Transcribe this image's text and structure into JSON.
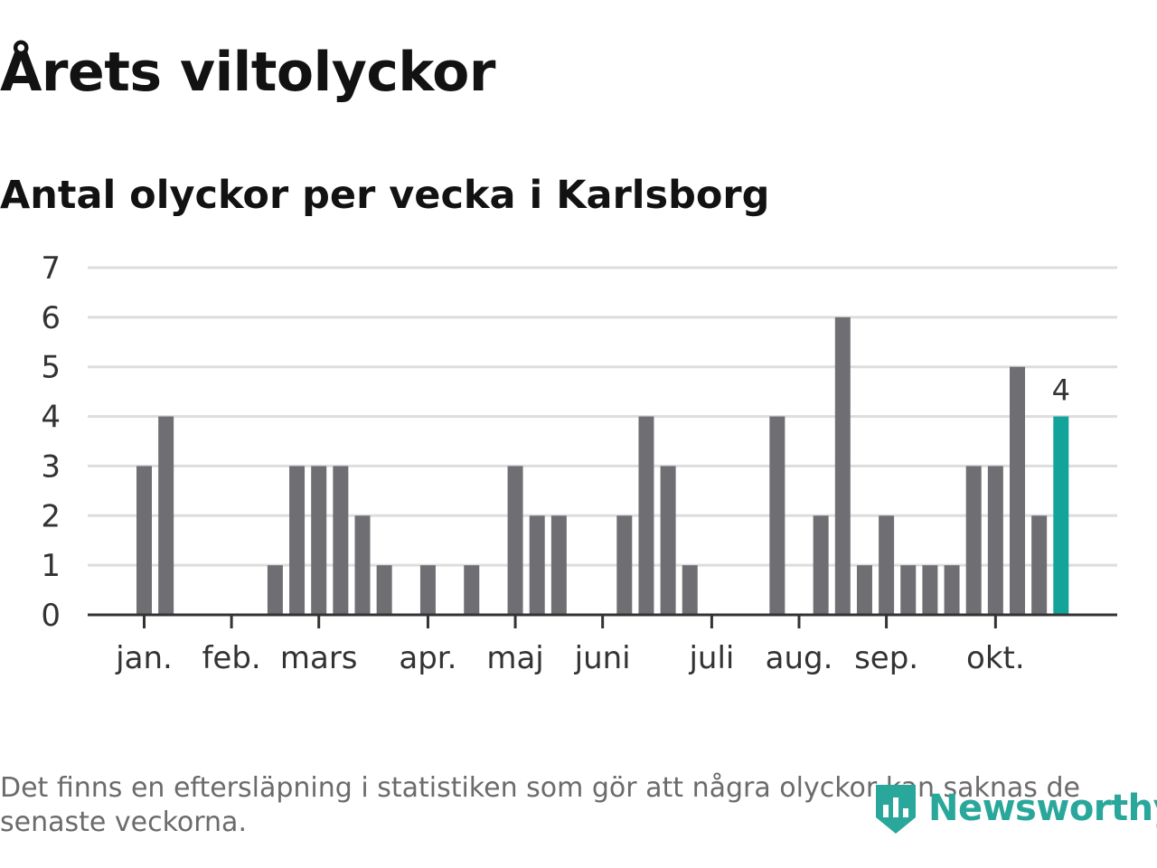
{
  "title": "Årets viltolyckor",
  "subtitle": "Antal olyckor per vecka i Karlsborg",
  "footnote": "Det finns en eftersläpning i statistiken som gör att några olyckor kan saknas de senaste veckorna.",
  "brand": {
    "name": "Newsworthy",
    "icon": "newsworthy-logo-icon",
    "color": "#2aa79b"
  },
  "colors": {
    "bar": "#6f6e73",
    "highlight": "#12a39a",
    "grid": "#dddddd",
    "axis": "#333333"
  },
  "chart_data": {
    "type": "bar",
    "title": "Antal olyckor per vecka i Karlsborg",
    "xlabel": "",
    "ylabel": "",
    "ylim": [
      0,
      7
    ],
    "yticks": [
      "0",
      "1",
      "2",
      "3",
      "4",
      "5",
      "6",
      "7"
    ],
    "grid": true,
    "x_tick_labels": [
      {
        "label": "jan.",
        "week": 1
      },
      {
        "label": "feb.",
        "week": 5
      },
      {
        "label": "mars",
        "week": 9
      },
      {
        "label": "apr.",
        "week": 14
      },
      {
        "label": "maj",
        "week": 18
      },
      {
        "label": "juni",
        "week": 22
      },
      {
        "label": "juli",
        "week": 27
      },
      {
        "label": "aug.",
        "week": 31
      },
      {
        "label": "sep.",
        "week": 35
      },
      {
        "label": "okt.",
        "week": 40
      }
    ],
    "weeks": [
      1,
      2,
      3,
      4,
      5,
      6,
      7,
      8,
      9,
      10,
      11,
      12,
      13,
      14,
      15,
      16,
      17,
      18,
      19,
      20,
      21,
      22,
      23,
      24,
      25,
      26,
      27,
      28,
      29,
      30,
      31,
      32,
      33,
      34,
      35,
      36,
      37,
      38,
      39,
      40,
      41,
      42,
      43
    ],
    "values": [
      3,
      4,
      0,
      0,
      0,
      0,
      1,
      3,
      3,
      3,
      2,
      1,
      0,
      1,
      0,
      1,
      0,
      3,
      2,
      2,
      0,
      0,
      2,
      4,
      3,
      1,
      0,
      0,
      0,
      4,
      0,
      2,
      6,
      1,
      2,
      1,
      1,
      1,
      3,
      3,
      5,
      2,
      4
    ],
    "highlight_index": 42,
    "data_labels": [
      {
        "index": 42,
        "text": "4"
      }
    ]
  }
}
